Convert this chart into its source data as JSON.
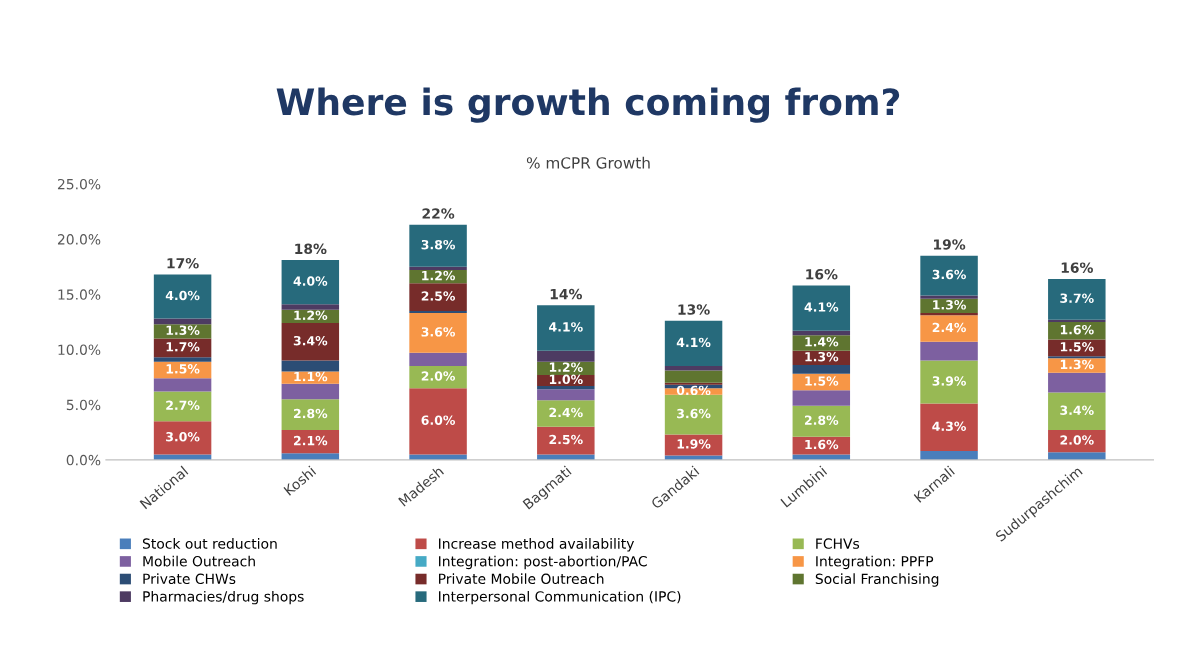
{
  "chart_data": {
    "type": "bar",
    "stacked": true,
    "title": "Where is growth coming from?",
    "subtitle": "% mCPR Growth",
    "categories": [
      "National",
      "Koshi",
      "Madesh",
      "Bagmati",
      "Gandaki",
      "Lumbini",
      "Karnali",
      "Sudurpashchim"
    ],
    "ylim": [
      0,
      25
    ],
    "yticks": [
      {
        "value": 0,
        "label": "0.0%"
      },
      {
        "value": 5,
        "label": "5.0%"
      },
      {
        "value": 10,
        "label": "10.0%"
      },
      {
        "value": 15,
        "label": "15.0%"
      },
      {
        "value": 20,
        "label": "20.0%"
      },
      {
        "value": 25,
        "label": "25.0%"
      }
    ],
    "grid": false,
    "legend": "bottom",
    "totals": [
      "17%",
      "18%",
      "22%",
      "14%",
      "13%",
      "16%",
      "19%",
      "16%"
    ],
    "series": [
      {
        "name": "Stock out reduction",
        "color": "#4a7ebb",
        "values": [
          0.5,
          0.6,
          0.5,
          0.5,
          0.4,
          0.5,
          0.8,
          0.7
        ],
        "value_labels": [
          null,
          null,
          null,
          null,
          null,
          null,
          null,
          null
        ]
      },
      {
        "name": "Increase method availability",
        "color": "#be4b48",
        "values": [
          3.0,
          2.1,
          6.0,
          2.5,
          1.9,
          1.6,
          4.3,
          2.0
        ],
        "value_labels": [
          "3.0%",
          "2.1%",
          "6.0%",
          "2.5%",
          "1.9%",
          "1.6%",
          "4.3%",
          "2.0%"
        ]
      },
      {
        "name": "FCHVs",
        "color": "#98b954",
        "values": [
          2.7,
          2.8,
          2.0,
          2.4,
          3.6,
          2.8,
          3.9,
          3.4
        ],
        "value_labels": [
          "2.7%",
          "2.8%",
          "2.0%",
          "2.4%",
          "3.6%",
          "2.8%",
          "3.9%",
          "3.4%"
        ]
      },
      {
        "name": "Mobile Outreach",
        "color": "#7d60a0",
        "values": [
          1.2,
          1.4,
          1.2,
          1.0,
          0,
          1.4,
          1.7,
          1.8
        ],
        "value_labels": [
          null,
          null,
          null,
          null,
          null,
          null,
          null,
          null
        ]
      },
      {
        "name": "Integration: post-abortion/PAC",
        "color": "#46aac5",
        "values": [
          0,
          0,
          0,
          0,
          0,
          0,
          0,
          0
        ],
        "value_labels": [
          null,
          null,
          null,
          null,
          null,
          null,
          null,
          null
        ]
      },
      {
        "name": "Integration: PPFP",
        "color": "#f79646",
        "values": [
          1.5,
          1.1,
          3.6,
          0,
          0.6,
          1.5,
          2.4,
          1.3
        ],
        "value_labels": [
          "1.5%",
          "1.1%",
          "3.6%",
          null,
          "0.6%",
          "1.5%",
          "2.4%",
          "1.3%"
        ]
      },
      {
        "name": "Private CHWs",
        "color": "#2c4d75",
        "values": [
          0.4,
          1.0,
          0.2,
          0.3,
          0.3,
          0.8,
          0,
          0.2
        ],
        "value_labels": [
          null,
          null,
          null,
          null,
          null,
          null,
          null,
          null
        ]
      },
      {
        "name": "Private Mobile Outreach",
        "color": "#772c2a",
        "values": [
          1.7,
          3.4,
          2.5,
          1.0,
          0.2,
          1.3,
          0.2,
          1.5
        ],
        "value_labels": [
          "1.7%",
          "3.4%",
          "2.5%",
          "1.0%",
          null,
          "1.3%",
          null,
          "1.5%"
        ]
      },
      {
        "name": "Social Franchising",
        "color": "#5f7530",
        "values": [
          1.3,
          1.2,
          1.2,
          1.2,
          1.1,
          1.4,
          1.3,
          1.6
        ],
        "value_labels": [
          "1.3%",
          "1.2%",
          "1.2%",
          "1.2%",
          null,
          "1.4%",
          "1.3%",
          "1.6%"
        ]
      },
      {
        "name": "Pharmacies/drug shops",
        "color": "#4d3b62",
        "values": [
          0.5,
          0.5,
          0.3,
          1.0,
          0.4,
          0.4,
          0.3,
          0.2
        ],
        "value_labels": [
          null,
          null,
          null,
          null,
          null,
          null,
          null,
          null
        ]
      },
      {
        "name": "Interpersonal Communication (IPC)",
        "color": "#276a7c",
        "values": [
          4.0,
          4.0,
          3.8,
          4.1,
          4.1,
          4.1,
          3.6,
          3.7
        ],
        "value_labels": [
          "4.0%",
          "4.0%",
          "3.8%",
          "4.1%",
          "4.1%",
          "4.1%",
          "3.6%",
          "3.7%"
        ]
      }
    ]
  }
}
